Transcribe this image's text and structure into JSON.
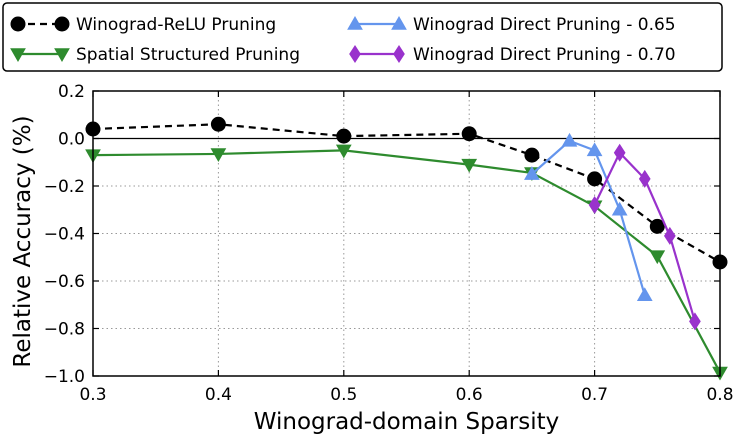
{
  "chart_data": {
    "type": "line",
    "xlabel": "Winograd-domain Sparsity",
    "ylabel": "Relative Accuracy (%)",
    "xlim": [
      0.3,
      0.8
    ],
    "ylim": [
      -1.0,
      0.2
    ],
    "xticks": [
      0.3,
      0.4,
      0.5,
      0.6,
      0.7,
      0.8
    ],
    "yticks": [
      0.2,
      0.0,
      -0.2,
      -0.4,
      -0.6,
      -0.8,
      -1.0
    ],
    "xtick_labels": [
      "0.3",
      "0.4",
      "0.5",
      "0.6",
      "0.7",
      "0.8"
    ],
    "ytick_labels": [
      "0.2",
      "0.0",
      "−0.2",
      "−0.4",
      "−0.6",
      "−0.8",
      "−1.0"
    ],
    "grid": true,
    "reference_line_y": 0.0,
    "legend_position": "top",
    "series": [
      {
        "name": "Winograd-ReLU Pruning",
        "color": "#000000",
        "marker": "circle",
        "line_style": "dashed",
        "x": [
          0.3,
          0.4,
          0.5,
          0.6,
          0.65,
          0.7,
          0.75,
          0.8
        ],
        "y": [
          0.04,
          0.06,
          0.01,
          0.02,
          -0.07,
          -0.17,
          -0.37,
          -0.52
        ]
      },
      {
        "name": "Spatial Structured Pruning",
        "color": "#2e8b2e",
        "marker": "triangle-down",
        "line_style": "solid",
        "x": [
          0.3,
          0.4,
          0.5,
          0.6,
          0.65,
          0.7,
          0.75,
          0.8
        ],
        "y": [
          -0.07,
          -0.065,
          -0.05,
          -0.11,
          -0.145,
          -0.285,
          -0.495,
          -0.985
        ]
      },
      {
        "name": "Winograd Direct Pruning - 0.65",
        "color": "#6495ed",
        "marker": "triangle-up",
        "line_style": "solid",
        "x": [
          0.65,
          0.68,
          0.7,
          0.72,
          0.74
        ],
        "y": [
          -0.15,
          -0.01,
          -0.05,
          -0.3,
          -0.66
        ]
      },
      {
        "name": "Winograd Direct Pruning - 0.70",
        "color": "#9932cc",
        "marker": "diamond",
        "line_style": "solid",
        "x": [
          0.7,
          0.72,
          0.74,
          0.76,
          0.78
        ],
        "y": [
          -0.28,
          -0.06,
          -0.17,
          -0.41,
          -0.77
        ]
      }
    ]
  }
}
